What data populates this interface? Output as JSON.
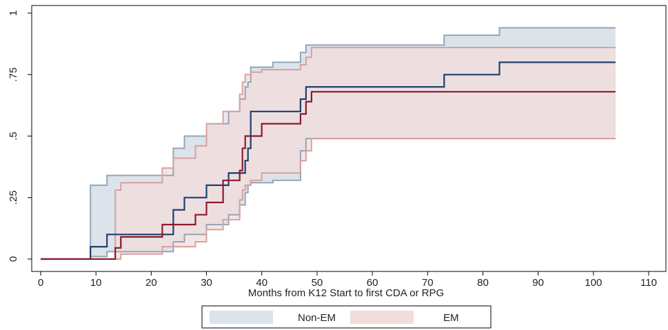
{
  "chart_data": {
    "type": "line",
    "subtype": "step-with-confidence-bands",
    "title": "",
    "xlabel": "Months from K12 Start to first CDA or RPG",
    "ylabel": "",
    "xlim": [
      0,
      110
    ],
    "ylim": [
      0,
      1
    ],
    "x_ticks": [
      0,
      10,
      20,
      30,
      40,
      50,
      60,
      70,
      80,
      90,
      100,
      110
    ],
    "x_tick_labels": [
      "0",
      "10",
      "20",
      "30",
      "40",
      "50",
      "60",
      "70",
      "80",
      "90",
      "100",
      "110"
    ],
    "y_ticks": [
      0,
      0.25,
      0.5,
      0.75,
      1
    ],
    "y_tick_labels": [
      "0",
      ".25",
      ".5",
      ".75",
      "1"
    ],
    "grid": false,
    "legend_position": "bottom",
    "legend": [
      {
        "label": "Non-EM",
        "color": "#dde3ea"
      },
      {
        "label": "EM",
        "color": "#f2dcdc"
      }
    ],
    "series": [
      {
        "name": "Non-EM",
        "line_color": "#1f3f6e",
        "band_fill": "#dde3ea",
        "band_edge": "#93a6b8",
        "estimate": {
          "x": [
            0,
            9,
            10,
            12,
            20,
            22,
            24,
            25,
            26,
            28,
            30,
            34,
            36,
            37,
            37.5,
            38,
            42,
            47,
            47.5,
            48,
            73,
            83,
            104
          ],
          "y": [
            0,
            0.05,
            0.05,
            0.1,
            0.1,
            0.1,
            0.2,
            0.2,
            0.25,
            0.25,
            0.3,
            0.35,
            0.35,
            0.4,
            0.45,
            0.6,
            0.6,
            0.65,
            0.65,
            0.7,
            0.75,
            0.8,
            0.8
          ]
        },
        "upper": {
          "x": [
            0,
            9,
            12,
            20,
            22,
            24,
            25,
            26,
            28,
            30,
            34,
            36,
            37,
            37.5,
            38,
            42,
            47,
            47.5,
            48,
            73,
            83,
            104
          ],
          "y": [
            0,
            0.3,
            0.34,
            0.34,
            0.34,
            0.45,
            0.45,
            0.5,
            0.5,
            0.55,
            0.6,
            0.65,
            0.7,
            0.72,
            0.78,
            0.8,
            0.84,
            0.84,
            0.87,
            0.91,
            0.94,
            0.94
          ]
        },
        "lower": {
          "x": [
            0,
            9,
            10,
            12,
            20,
            22,
            24,
            25,
            26,
            28,
            30,
            31,
            34,
            36,
            37,
            37.5,
            38,
            42,
            47,
            48,
            73,
            83,
            104
          ],
          "y": [
            0,
            0.01,
            0.01,
            0.03,
            0.03,
            0.03,
            0.07,
            0.07,
            0.1,
            0.1,
            0.14,
            0.14,
            0.18,
            0.22,
            0.27,
            0.3,
            0.31,
            0.32,
            0.44,
            0.49,
            0.49,
            0.49,
            0.49
          ]
        }
      },
      {
        "name": "EM",
        "line_color": "#8b1a2a",
        "band_fill": "#f2dcdc",
        "band_edge": "#d8a0a0",
        "estimate": {
          "x": [
            0,
            13.5,
            14.5,
            22,
            24,
            26,
            28,
            30,
            33,
            36,
            36.5,
            37,
            38,
            40,
            42,
            47,
            48,
            49,
            104
          ],
          "y": [
            0,
            0.045,
            0.09,
            0.14,
            0.14,
            0.14,
            0.18,
            0.23,
            0.32,
            0.36,
            0.45,
            0.5,
            0.5,
            0.55,
            0.55,
            0.59,
            0.64,
            0.68,
            0.68
          ]
        },
        "upper": {
          "x": [
            0,
            13.5,
            14.5,
            22,
            24,
            26,
            28,
            30,
            33,
            36,
            36.5,
            37,
            38,
            40,
            47,
            48,
            49,
            104
          ],
          "y": [
            0,
            0.28,
            0.31,
            0.37,
            0.41,
            0.41,
            0.46,
            0.55,
            0.6,
            0.67,
            0.72,
            0.75,
            0.76,
            0.77,
            0.79,
            0.82,
            0.86,
            0.86
          ]
        },
        "lower": {
          "x": [
            0,
            13.5,
            14.5,
            22,
            24,
            26,
            28,
            30,
            33,
            36,
            36.5,
            37,
            38,
            40,
            47,
            48,
            49,
            104
          ],
          "y": [
            0,
            0.0,
            0.02,
            0.05,
            0.05,
            0.05,
            0.07,
            0.12,
            0.16,
            0.24,
            0.28,
            0.3,
            0.32,
            0.35,
            0.4,
            0.44,
            0.49,
            0.49
          ]
        }
      }
    ]
  }
}
